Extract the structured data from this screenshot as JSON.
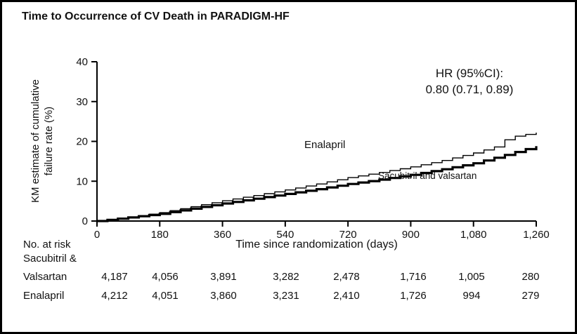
{
  "chart_data": {
    "type": "line",
    "subtype": "kaplan-meier-step",
    "title": "Time to Occurrence of CV Death in PARADIGM-HF",
    "xlabel": "Time since randomization (days)",
    "ylabel": "KM estimate of cumulative failure rate (%)",
    "ylabel_line1": "KM estimate of cumulative",
    "ylabel_line2": "failure rate (%)",
    "annotation_line1": "HR (95%CI):",
    "annotation_line2": "0.80 (0.71, 0.89)",
    "xlim": [
      0,
      1260
    ],
    "ylim": [
      0,
      40
    ],
    "x_ticks": [
      0,
      180,
      360,
      540,
      720,
      900,
      1080,
      1260
    ],
    "x_tick_labels": [
      "0",
      "180",
      "360",
      "540",
      "720",
      "900",
      "1,080",
      "1,260"
    ],
    "y_ticks": [
      0,
      10,
      20,
      30,
      40
    ],
    "grid": false,
    "line_color": "#000000",
    "legend_position": "on-curve-labels",
    "series": [
      {
        "name": "Enalapril",
        "line_weight": "thin",
        "x": [
          0,
          90,
          180,
          270,
          360,
          450,
          540,
          630,
          720,
          810,
          900,
          990,
          1080,
          1140,
          1180,
          1260
        ],
        "y": [
          0,
          1.0,
          2.1,
          3.6,
          5.1,
          6.4,
          7.8,
          9.3,
          10.9,
          12.2,
          13.6,
          15.2,
          17.1,
          18.6,
          21.0,
          22.2
        ]
      },
      {
        "name": "Sacubitril and valsartan",
        "line_weight": "thick",
        "x": [
          0,
          90,
          180,
          270,
          360,
          450,
          540,
          630,
          720,
          810,
          900,
          990,
          1080,
          1170,
          1260
        ],
        "y": [
          0,
          0.9,
          1.8,
          3.1,
          4.4,
          5.6,
          6.8,
          8.0,
          9.3,
          10.4,
          11.6,
          13.0,
          14.5,
          16.6,
          18.8
        ]
      }
    ],
    "at_risk": {
      "label": "No. at risk",
      "rows": [
        {
          "name_line1": "Sacubitril &",
          "name_line2": "Valsartan",
          "counts": [
            "4,187",
            "4,056",
            "3,891",
            "3,282",
            "2,478",
            "1,716",
            "1,005",
            "280"
          ]
        },
        {
          "name": "Enalapril",
          "counts": [
            "4,212",
            "4,051",
            "3,860",
            "3,231",
            "2,410",
            "1,726",
            "994",
            "279"
          ]
        }
      ]
    }
  }
}
